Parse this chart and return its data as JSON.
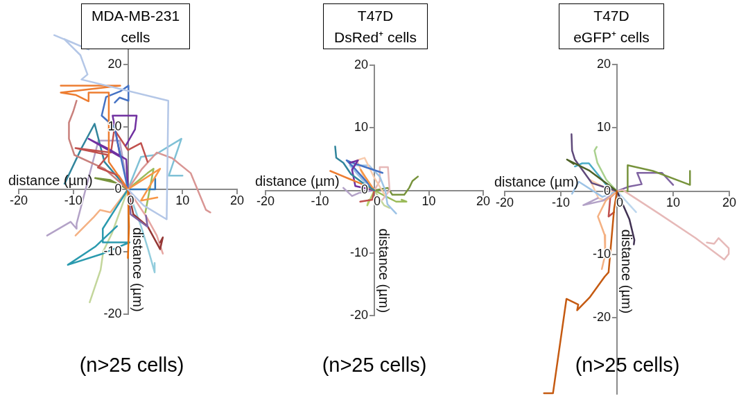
{
  "chart_data": [
    {
      "type": "line",
      "title": "MDA-MB-231\ncells",
      "xlabel": "distance (µm)",
      "ylabel": "distance (µm)",
      "annotations": [
        "(n>25 cells)"
      ],
      "xlim": [
        -20,
        20
      ],
      "ylim": [
        -20,
        25
      ],
      "xticks": [
        -20,
        -10,
        0,
        10,
        20
      ],
      "yticks": [
        -20,
        -10,
        0,
        10,
        20
      ],
      "grid": false,
      "legend": false,
      "marker": "none",
      "series": [
        {
          "color": "#b4c7e7",
          "x": [
            0,
            2.9,
            7.1,
            7.4,
            -8.5,
            -7.4,
            -8.7,
            -11.7,
            -7.2,
            -13.5
          ],
          "values": [
            0,
            -2.6,
            -4.8,
            14.2,
            17.6,
            18.4,
            21.5,
            24.1,
            22.4,
            24.7
          ]
        },
        {
          "color": "#ed7d31",
          "x": [
            0,
            -3.5,
            -3.5,
            -7.2,
            -7.2,
            -9.5,
            -12.3,
            -1.4,
            -12.3
          ],
          "values": [
            0,
            4.4,
            15.5,
            15.5,
            14.1,
            15.1,
            15.5,
            16.6,
            16.6
          ]
        },
        {
          "color": "#f79646",
          "x": [
            0,
            5.9,
            2.4,
            5.4
          ],
          "values": [
            0,
            3.3,
            -1.8,
            -1.3
          ]
        },
        {
          "color": "#e46c0a",
          "x": [
            0,
            0.2,
            0
          ],
          "values": [
            0,
            -6,
            -11
          ]
        },
        {
          "color": "#4472c4",
          "x": [
            0,
            -1,
            -2.5,
            -4.8,
            -4,
            -1.4,
            0.1,
            0.1,
            -1.5,
            -2.4
          ],
          "values": [
            0,
            4,
            10,
            11.8,
            14.8,
            15.7,
            16.6,
            14.2,
            14.7,
            13.9
          ]
        },
        {
          "color": "#2e75b6",
          "x": [
            0,
            5,
            5
          ],
          "values": [
            0,
            0,
            1.7
          ]
        },
        {
          "color": "#7030a0",
          "x": [
            0,
            -0.3,
            -3.8,
            -7.2,
            -1.4,
            -2.8,
            1.6,
            1.3,
            -0.4
          ],
          "values": [
            0,
            4.8,
            6.6,
            8.1,
            5.2,
            11.8,
            11.8,
            9.6,
            7
          ]
        },
        {
          "color": "#8064a2",
          "x": [
            0,
            0.5,
            3.6,
            3.3
          ],
          "values": [
            0,
            -4,
            -6,
            -4.2
          ]
        },
        {
          "color": "#c0504d",
          "x": [
            0,
            -1.7,
            -5.5,
            -3.6,
            -9.6,
            -3.1,
            -2.5,
            0,
            2.4,
            3.6
          ],
          "values": [
            0,
            2.2,
            3.5,
            5.5,
            6.6,
            5.9,
            9.6,
            6.3,
            7.4,
            4.4
          ]
        },
        {
          "color": "#953735",
          "x": [
            0,
            1,
            3.6,
            5.9,
            6.4,
            5.9
          ],
          "values": [
            0,
            -4,
            -5.9,
            -9.6,
            -7.7,
            -8.5
          ]
        },
        {
          "color": "#d99694",
          "x": [
            0,
            2.6,
            5.3,
            8.1,
            11.5,
            14.3,
            15.1
          ],
          "values": [
            0,
            3.3,
            5.9,
            5,
            2.6,
            -3.3,
            -3.7
          ]
        },
        {
          "color": "#c9807c",
          "x": [
            0,
            -4.3,
            -9.8,
            -10.8,
            -10.8,
            -10,
            -9.4
          ],
          "values": [
            0,
            3.3,
            5.5,
            8.1,
            10.7,
            12.5,
            14.2
          ]
        },
        {
          "color": "#e6a6a2",
          "x": [
            0,
            3.4,
            5.3,
            6.4,
            5.7
          ],
          "values": [
            0,
            -4.4,
            -7.4,
            -10.3,
            -8.5
          ]
        },
        {
          "color": "#31859c",
          "x": [
            0,
            -4.3,
            -6.1,
            -8.5,
            -11.6
          ],
          "values": [
            0,
            4.4,
            10.5,
            6.6,
            0.9
          ]
        },
        {
          "color": "#2a9aae",
          "x": [
            0,
            -2.4,
            -4.6,
            -4.6,
            0.3,
            -4.6,
            -11,
            -6,
            -2
          ],
          "values": [
            0,
            -3.3,
            -6.3,
            -8.5,
            -8.5,
            -10.3,
            -12.1,
            -9.2,
            -5.9
          ]
        },
        {
          "color": "#7fc1d6",
          "x": [
            0,
            2.4,
            4.9,
            9.8,
            7.5,
            10
          ],
          "values": [
            0,
            5.2,
            5.5,
            8.1,
            2.2,
            2.2
          ]
        },
        {
          "color": "#93cddd",
          "x": [
            0,
            2.4,
            3.7,
            4.9,
            4.9
          ],
          "values": [
            0,
            -5.9,
            -9.6,
            -13.3,
            -11.8
          ]
        },
        {
          "color": "#b3a2c7",
          "x": [
            0,
            -1.5,
            -5.4,
            -9.4,
            -9.4,
            -10.5,
            -14.8
          ],
          "values": [
            0,
            7.8,
            7.8,
            -5.5,
            -6.3,
            -5.2,
            -7.4
          ]
        },
        {
          "color": "#f4b183",
          "x": [
            0,
            -3.2,
            -5.1,
            -6.2,
            -9.6
          ],
          "values": [
            0,
            -3.7,
            -3.3,
            -4.4,
            -7.4
          ]
        },
        {
          "color": "#c3d69b",
          "x": [
            0,
            -2.9,
            -4.5,
            -5,
            -7
          ],
          "values": [
            0,
            -7,
            -9.9,
            -12.9,
            -18.1
          ]
        },
        {
          "color": "#77933c",
          "x": [
            0,
            -3.2,
            -6,
            -2.5
          ],
          "values": [
            0,
            1.5,
            1.8,
            1.1
          ]
        },
        {
          "color": "#9bbb59",
          "x": [
            0,
            3.6,
            4.7,
            3.2
          ],
          "values": [
            0,
            2.6,
            3.3,
            -3.7
          ]
        }
      ]
    },
    {
      "type": "line",
      "title": "T47D\nDsRed⁺ cells",
      "xlabel": "distance (µm)",
      "ylabel": "distance (µm)",
      "annotations": [
        "(n>25 cells)"
      ],
      "xlim": [
        -20,
        20
      ],
      "ylim": [
        -20,
        20
      ],
      "xticks": [
        -20,
        -10,
        0,
        10,
        20
      ],
      "yticks": [
        -20,
        -10,
        0,
        10,
        20
      ],
      "grid": false,
      "legend": false,
      "marker": "none",
      "series": [
        {
          "color": "#31859c",
          "x": [
            0,
            -2.3,
            -4.3,
            -5.7,
            -7,
            -7.2
          ],
          "values": [
            0,
            1.3,
            2.6,
            4.4,
            5.2,
            7
          ]
        },
        {
          "color": "#ed7d31",
          "x": [
            0,
            -2.5,
            -4.5,
            -8.1
          ],
          "values": [
            0,
            1.1,
            1.8,
            3.1
          ]
        },
        {
          "color": "#f79646",
          "x": [
            0,
            -1.7,
            -2.5
          ],
          "values": [
            0,
            2.2,
            3.3
          ]
        },
        {
          "color": "#7030a0",
          "x": [
            0,
            -3.5,
            -4.1,
            -3,
            -4.5
          ],
          "values": [
            0,
            0.7,
            3.3,
            4.8,
            4.4
          ]
        },
        {
          "color": "#4472c4",
          "x": [
            0,
            -3.4,
            -5.1,
            -4,
            1.5
          ],
          "values": [
            0,
            3.3,
            4.8,
            4.4,
            2.8
          ]
        },
        {
          "color": "#f8cbad",
          "x": [
            0,
            -2,
            -3.2,
            -1.8,
            0,
            1.9
          ],
          "values": [
            0,
            2.2,
            4.8,
            5.2,
            2,
            -0.7
          ]
        },
        {
          "color": "#9dc3e6",
          "x": [
            0,
            -2.3,
            -4.5,
            -1,
            1,
            2,
            2.4,
            4
          ],
          "values": [
            0,
            1.8,
            4,
            4,
            2.2,
            0,
            -2.2,
            -3.7
          ]
        },
        {
          "color": "#e6b9b8",
          "x": [
            0,
            1,
            1,
            2.5,
            2.8,
            1.5
          ],
          "values": [
            0,
            1.5,
            3.7,
            3.7,
            0,
            -1.5
          ]
        },
        {
          "color": "#c0504d",
          "x": [
            0,
            -0.4,
            -2.6
          ],
          "values": [
            0,
            -1.5,
            -1.8
          ]
        },
        {
          "color": "#77933c",
          "x": [
            0,
            2.5,
            3.3,
            5.5,
            6.4,
            7,
            8
          ],
          "values": [
            0,
            0.4,
            -0.7,
            -0.7,
            0.4,
            1.5,
            2.2
          ]
        },
        {
          "color": "#9bbb59",
          "x": [
            0,
            2.4,
            4,
            5.9,
            5
          ],
          "values": [
            0,
            -1.1,
            -1.8,
            -1.8,
            -1.5
          ]
        },
        {
          "color": "#b5cf6a",
          "x": [
            0,
            -1.3,
            -1
          ],
          "values": [
            0,
            -2.4,
            -1.5
          ]
        },
        {
          "color": "#b3a2c7",
          "x": [
            0,
            -2.8,
            -4.1,
            -5.7
          ],
          "values": [
            0,
            -0.4,
            -0.9,
            0.4
          ]
        },
        {
          "color": "#c3d69b",
          "x": [
            0,
            1.8,
            2.8
          ],
          "values": [
            0,
            -2.4,
            -2.8
          ]
        }
      ]
    },
    {
      "type": "line",
      "title": "T47D\neGFP⁺ cells",
      "xlabel": "distance (µm)",
      "ylabel": "distance (µm)",
      "annotations": [
        "(n>25 cells)"
      ],
      "xlim": [
        -20,
        20
      ],
      "ylim": [
        -32,
        20
      ],
      "xticks": [
        -20,
        -10,
        0,
        10,
        20
      ],
      "yticks": [
        -20,
        -10,
        0,
        10,
        20
      ],
      "grid": false,
      "legend": false,
      "marker": "none",
      "series": [
        {
          "color": "#c55a11",
          "x": [
            0,
            -0.5,
            -1.5,
            -2.2,
            -4.9,
            -7.1,
            -6.9,
            -9,
            -11.4,
            -13
          ],
          "values": [
            0,
            -2.7,
            -12.8,
            -13.5,
            -16.8,
            -18.8,
            -17.9,
            -17,
            -31.9,
            -31.9
          ]
        },
        {
          "color": "#e6b9b8",
          "x": [
            0,
            1,
            7.4,
            14,
            19.1,
            19.9,
            19.9,
            18.1,
            17.3,
            16
          ],
          "values": [
            0,
            0.2,
            -3.5,
            -7.4,
            -10.8,
            -9.9,
            -9,
            -7.4,
            -8.3,
            -8.1
          ]
        },
        {
          "color": "#77933c",
          "x": [
            0,
            1.9,
            1.9,
            6.4,
            13,
            13
          ],
          "values": [
            0,
            0,
            4.1,
            3.2,
            1,
            3.2
          ]
        },
        {
          "color": "#4f6228",
          "x": [
            0,
            -5,
            -8.9,
            -7.7
          ],
          "values": [
            0,
            3.3,
            5,
            4.3
          ]
        },
        {
          "color": "#5f497a",
          "x": [
            0,
            -4.5,
            -7.5,
            -8,
            -8.1
          ],
          "values": [
            0,
            1.3,
            5,
            6.4,
            9
          ]
        },
        {
          "color": "#8064a2",
          "x": [
            0,
            2,
            4.4,
            3.6,
            8,
            10
          ],
          "values": [
            0,
            0.7,
            1.1,
            2.9,
            2.9,
            1
          ]
        },
        {
          "color": "#403152",
          "x": [
            0,
            2.2,
            3.1,
            3
          ],
          "values": [
            0,
            -4.4,
            -7.7,
            -8.4
          ]
        },
        {
          "color": "#a9d18e",
          "x": [
            0,
            -1.9,
            -3.5,
            -4,
            -3.6
          ],
          "values": [
            0,
            1.8,
            4.5,
            6.4,
            7
          ]
        },
        {
          "color": "#4bacc6",
          "x": [
            0,
            -2,
            -4,
            -5,
            -6.2,
            -7.5
          ],
          "values": [
            0,
            1.1,
            3.3,
            4.4,
            4.4,
            3.9
          ]
        },
        {
          "color": "#f4b183",
          "x": [
            0,
            -2,
            -3.4,
            -2.2,
            -2.1,
            -2.7
          ],
          "values": [
            0,
            -1.5,
            -4,
            -6.9,
            -10,
            -12.3
          ]
        },
        {
          "color": "#9dc3e6",
          "x": [
            0,
            -2.6,
            -6.8,
            -8
          ],
          "values": [
            0,
            -0.9,
            1.5,
            -0.4
          ]
        },
        {
          "color": "#bdd7ee",
          "x": [
            0,
            3.4
          ],
          "values": [
            0,
            -3.3
          ]
        },
        {
          "color": "#b3a2c7",
          "x": [
            0,
            -2.5,
            -6,
            -3.4
          ],
          "values": [
            0,
            -1.5,
            -2.2,
            -1.1
          ]
        },
        {
          "color": "#c0504d",
          "x": [
            0,
            -1.2,
            -1.5,
            -0.5
          ],
          "values": [
            0,
            -1,
            -4,
            -3.3
          ]
        },
        {
          "color": "#f8cbad",
          "x": [
            0,
            -1,
            -4.8,
            -3.3,
            -2
          ],
          "values": [
            0,
            0,
            1.8,
            -1.1,
            -1.5
          ]
        }
      ]
    }
  ]
}
